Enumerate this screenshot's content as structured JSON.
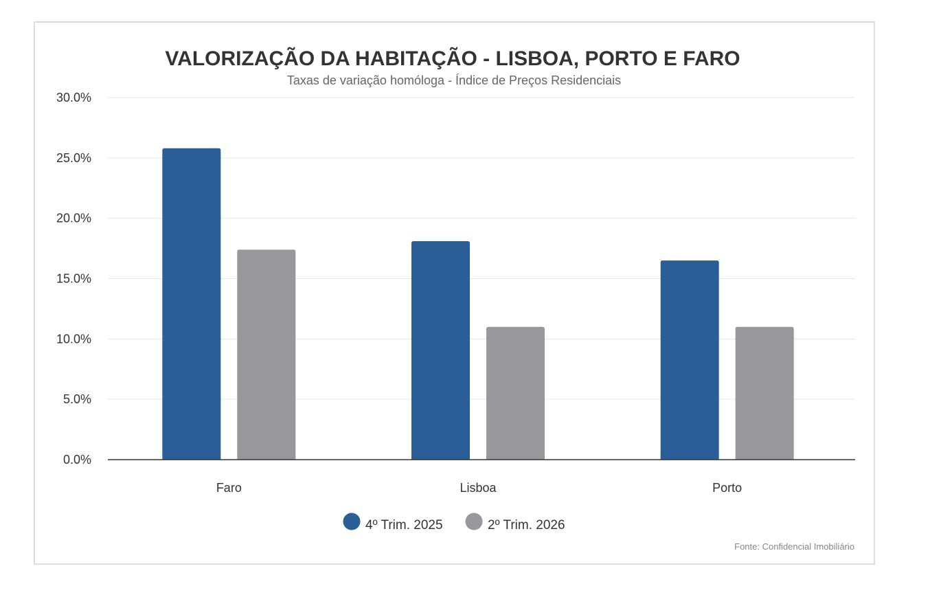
{
  "chart_data": {
    "type": "bar",
    "title": "VALORIZAÇÃO DA HABITAÇÃO - LISBOA, PORTO E FARO",
    "subtitle": "Taxas de variação homóloga - Índice de Preços Residenciais",
    "categories": [
      "Faro",
      "Lisboa",
      "Porto"
    ],
    "series": [
      {
        "name": "4º Trim. 2025",
        "values": [
          25.8,
          18.1,
          16.5
        ],
        "color": "#2a5e96"
      },
      {
        "name": "2º Trim. 2026",
        "values": [
          17.4,
          11.0,
          11.0
        ],
        "color": "#97989b"
      }
    ],
    "ylim": [
      0,
      30
    ],
    "yticks": [
      0,
      5,
      10,
      15,
      20,
      25,
      30
    ],
    "ytick_labels": [
      "0.0%",
      "5.0%",
      "10.0%",
      "15.0%",
      "20.0%",
      "25.0%",
      "30.0%"
    ],
    "xlabel": "",
    "ylabel": "",
    "grid": true,
    "legend_position": "bottom-center",
    "source": "Fonte: Confidencial Imobiliário"
  }
}
